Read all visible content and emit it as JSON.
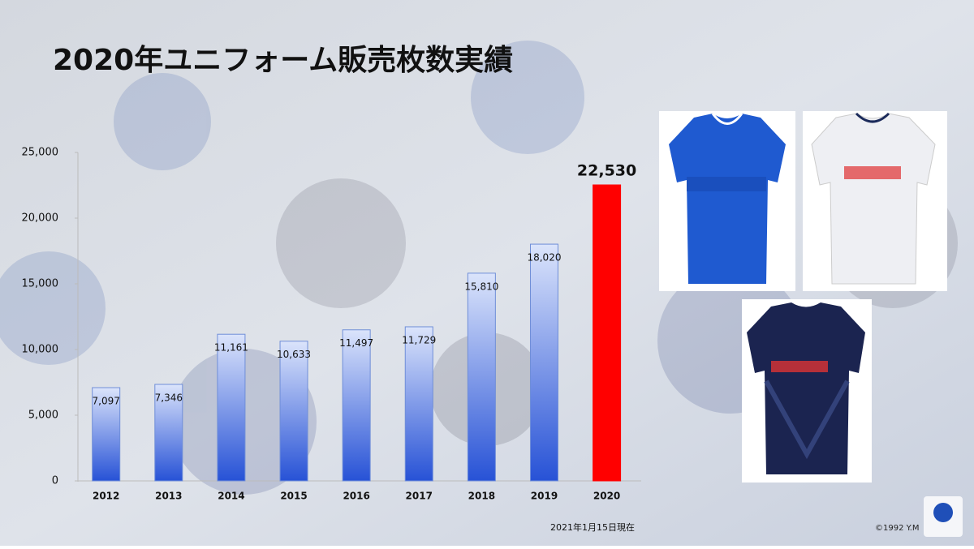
{
  "chart_data": {
    "type": "bar",
    "title": "2020年ユニフォーム販売枚数実績",
    "categories": [
      "2012",
      "2013",
      "2014",
      "2015",
      "2016",
      "2017",
      "2018",
      "2019",
      "2020"
    ],
    "values": [
      7097,
      7346,
      11161,
      10633,
      11497,
      11729,
      15810,
      18020,
      22530
    ],
    "value_labels": [
      "7,097",
      "7,346",
      "11,161",
      "10,633",
      "11,497",
      "11,729",
      "15,810",
      "18,020",
      "22,530"
    ],
    "colors": [
      "#2752d6",
      "#2752d6",
      "#2752d6",
      "#2752d6",
      "#2752d6",
      "#2752d6",
      "#2752d6",
      "#2752d6",
      "#ff0000"
    ],
    "ylim": [
      0,
      25000
    ],
    "yticks": [
      0,
      {
        "value": 5000,
        "label": "5,000"
      },
      {
        "value": 10000,
        "label": "10,000"
      },
      {
        "value": 15000,
        "label": "15,000"
      },
      {
        "value": 20000,
        "label": "20,000"
      },
      {
        "value": 25000,
        "label": "25,000"
      }
    ],
    "grid": false,
    "note": "2021年1月15日現在"
  },
  "footer": {
    "copyright": "©1992 Y.M"
  }
}
